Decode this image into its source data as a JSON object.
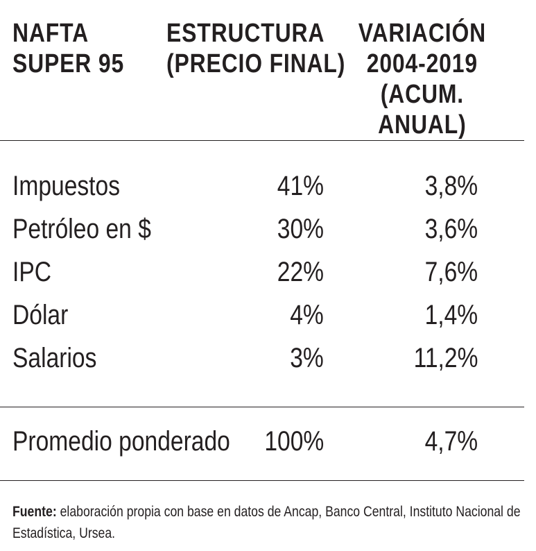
{
  "headers": {
    "col1": "NAFTA\nSUPER 95",
    "col2": "ESTRUCTURA\n(PRECIO FINAL)",
    "col3": "VARIACIÓN\n2004-2019\n(ACUM. ANUAL)"
  },
  "chart_data": {
    "type": "table",
    "columns": [
      "NAFTA SUPER 95",
      "ESTRUCTURA (PRECIO FINAL)",
      "VARIACIÓN 2004-2019 (ACUM. ANUAL)"
    ],
    "rows": [
      {
        "label": "Impuestos",
        "estructura": "41%",
        "variacion": "3,8%"
      },
      {
        "label": "Petróleo en $",
        "estructura": "30%",
        "variacion": "3,6%"
      },
      {
        "label": "IPC",
        "estructura": "22%",
        "variacion": "7,6%"
      },
      {
        "label": "Dólar",
        "estructura": "4%",
        "variacion": "1,4%"
      },
      {
        "label": "Salarios",
        "estructura": "3%",
        "variacion": "11,2%"
      }
    ],
    "total": {
      "label": "Promedio ponderado",
      "estructura": "100%",
      "variacion": "4,7%"
    }
  },
  "source": {
    "prefix": "Fuente:",
    "text": " elaboración propia con base en datos de Ancap, Banco Central, Instituto Nacional de Estadística, Ursea."
  }
}
